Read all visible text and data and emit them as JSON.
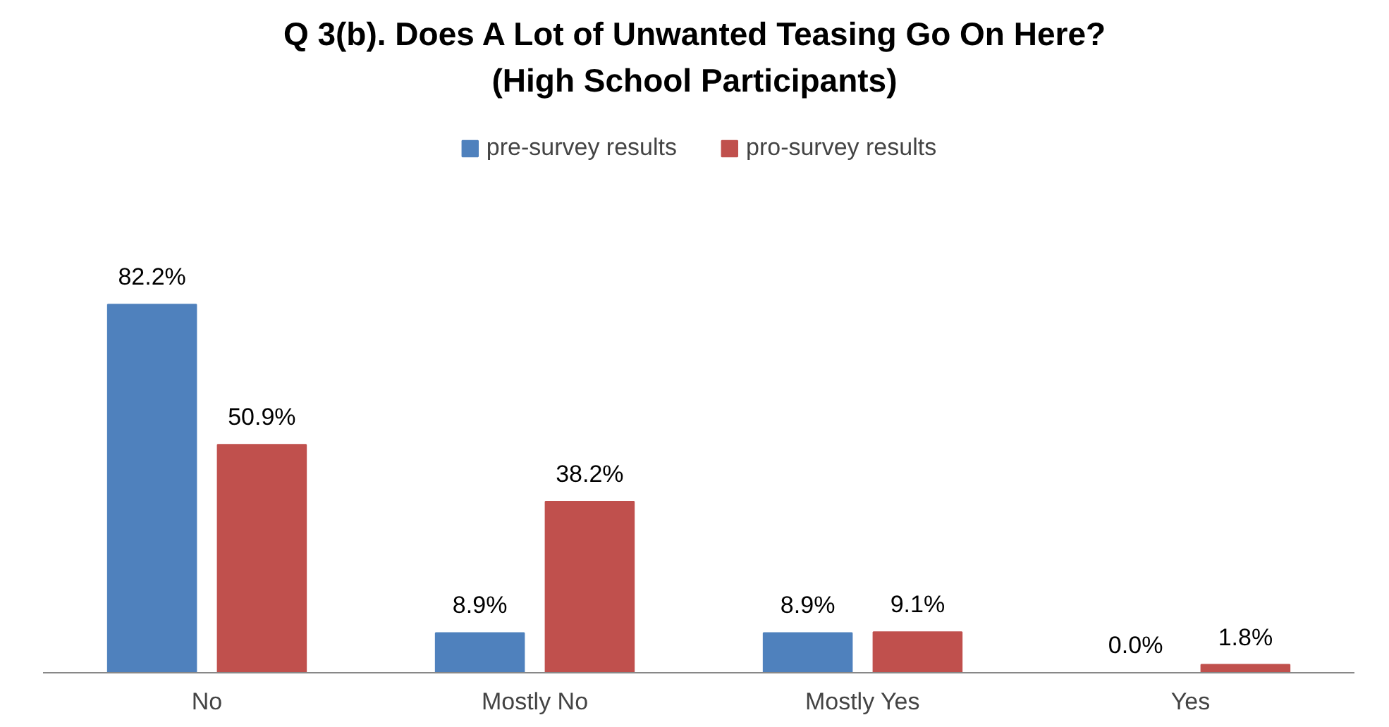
{
  "chart_data": {
    "type": "bar",
    "title": "Q 3(b). Does A Lot of Unwanted Teasing Go On Here?\n(High School Participants)",
    "categories": [
      "No",
      "Mostly No",
      "Mostly Yes",
      "Yes"
    ],
    "series": [
      {
        "name": "pre-survey results",
        "color": "#4f81bd",
        "values": [
          82.2,
          8.9,
          8.9,
          0.0
        ],
        "value_labels": [
          "82.2%",
          "8.9%",
          "8.9%",
          "0.0%"
        ]
      },
      {
        "name": "pro-survey results",
        "color": "#c0504d",
        "values": [
          50.9,
          38.2,
          9.1,
          1.8
        ],
        "value_labels": [
          "50.9%",
          "38.2%",
          "9.1%",
          "1.8%"
        ]
      }
    ],
    "legend": "top",
    "grid": false
  }
}
